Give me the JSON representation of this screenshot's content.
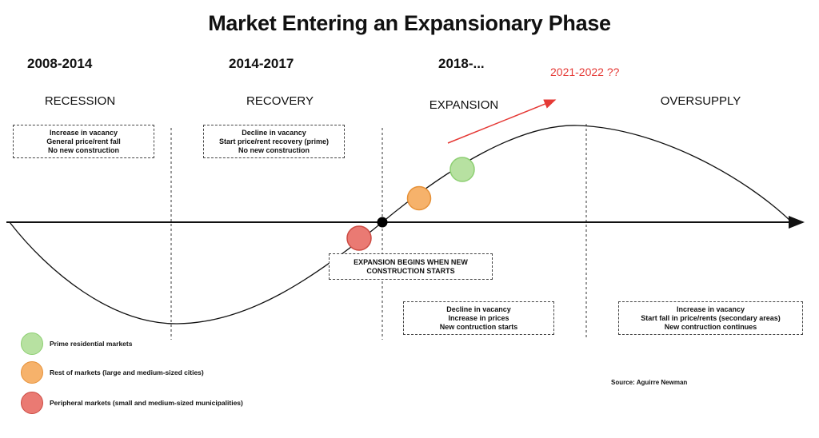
{
  "title": "Market Entering an Expansionary Phase",
  "periods": [
    {
      "label": "2008-2014",
      "phase": "RECESSION"
    },
    {
      "label": "2014-2017",
      "phase": "RECOVERY"
    },
    {
      "label": "2018-...",
      "phase": "EXPANSION"
    },
    {
      "label": "",
      "phase": "OVERSUPPLY"
    }
  ],
  "forecast": "2021-2022 ??",
  "boxes": {
    "recession": [
      "Increase in vacancy",
      "General price/rent fall",
      "No new construction"
    ],
    "recovery": [
      "Decline in vacancy",
      "Start price/rent recovery (prime)",
      "No new construction"
    ],
    "expansion_start": [
      "EXPANSION BEGINS WHEN NEW",
      "CONSTRUCTION STARTS"
    ],
    "expansion": [
      "Decline in vacancy",
      "Increase in prices",
      "New contruction starts"
    ],
    "oversupply": [
      "Increase in vacancy",
      "Start fall in price/rents (secondary areas)",
      "New contruction continues"
    ]
  },
  "legend": [
    {
      "label": "Prime residential markets",
      "color": "#b7e1a1",
      "border": "#8dcf72"
    },
    {
      "label": "Rest of markets (large and medium-sized cities)",
      "color": "#f6b26b",
      "border": "#e69138"
    },
    {
      "label": "Peripheral markets (small and medium-sized municipalities)",
      "color": "#ea7a73",
      "border": "#cc4b43"
    }
  ],
  "colors": {
    "forecast": "#e53935",
    "line": "#111111"
  },
  "source": "Source: Aguirre Newman"
}
